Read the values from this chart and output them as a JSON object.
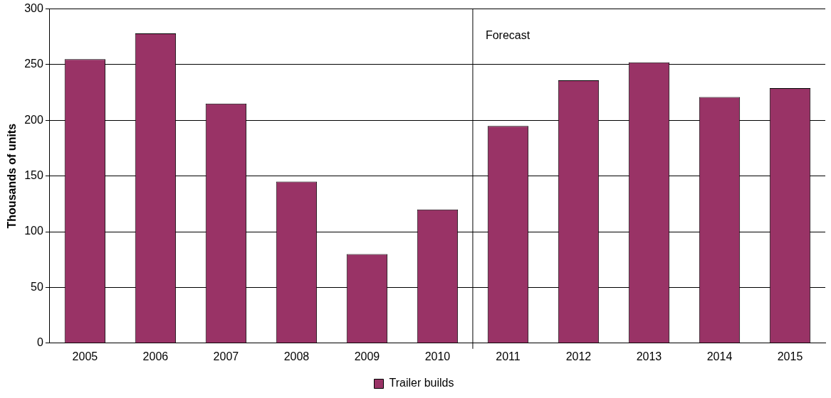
{
  "chart_data": {
    "type": "bar",
    "ylabel": "Thousands of units",
    "x": [
      2005,
      2006,
      2007,
      2008,
      2009,
      2010,
      2011,
      2012,
      2013,
      2014,
      2015
    ],
    "xlim": [
      2004.5,
      2015.5
    ],
    "xticks": [
      2005,
      2006,
      2007,
      2008,
      2009,
      2010,
      2011,
      2012,
      2013,
      2014,
      2015
    ],
    "series": [
      {
        "name": "Trailer builds",
        "color": "#993366",
        "values": [
          255,
          278,
          215,
          145,
          80,
          120,
          195,
          236,
          252,
          221,
          229
        ]
      }
    ],
    "ylim": [
      0,
      300
    ],
    "yticks": [
      0,
      50,
      100,
      150,
      200,
      250,
      300
    ],
    "grid": "y",
    "legend": "bottom",
    "ref_lines": [
      {
        "axis": "x",
        "value": 2010.5,
        "label": "Forecast",
        "color": "#000000"
      }
    ]
  }
}
